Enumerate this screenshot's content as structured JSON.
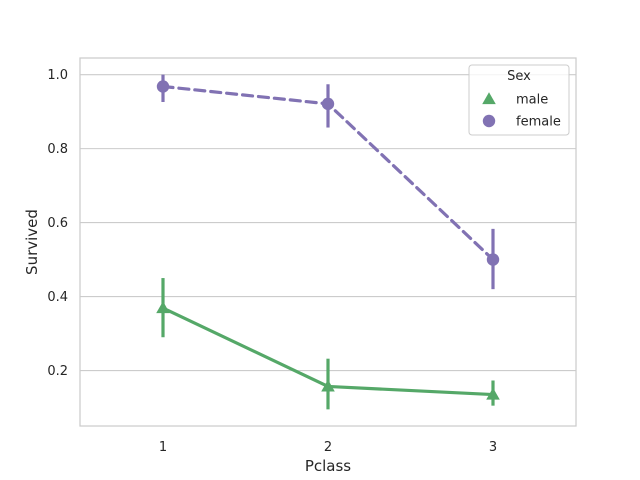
{
  "chart_data": {
    "type": "line",
    "categories": [
      "1",
      "2",
      "3"
    ],
    "xlabel": "Pclass",
    "ylabel": "Survived",
    "ylim": [
      0.05,
      1.045
    ],
    "yticks": [
      0.2,
      0.4,
      0.6,
      0.8,
      1.0
    ],
    "ytick_labels": [
      "0.2",
      "0.4",
      "0.6",
      "0.8",
      "1.0"
    ],
    "grid": "y",
    "legend": {
      "title": "Sex",
      "placement": "top-right"
    },
    "series": [
      {
        "name": "male",
        "color": "#55a868",
        "marker": "triangle",
        "linestyle": "solid",
        "values": [
          0.369,
          0.157,
          0.135
        ],
        "ci_low": [
          0.29,
          0.095,
          0.105
        ],
        "ci_high": [
          0.45,
          0.232,
          0.173
        ]
      },
      {
        "name": "female",
        "color": "#8172b3",
        "marker": "circle",
        "linestyle": "dashed",
        "values": [
          0.968,
          0.921,
          0.5
        ],
        "ci_low": [
          0.926,
          0.857,
          0.42
        ],
        "ci_high": [
          1.0,
          0.974,
          0.583
        ]
      }
    ]
  }
}
